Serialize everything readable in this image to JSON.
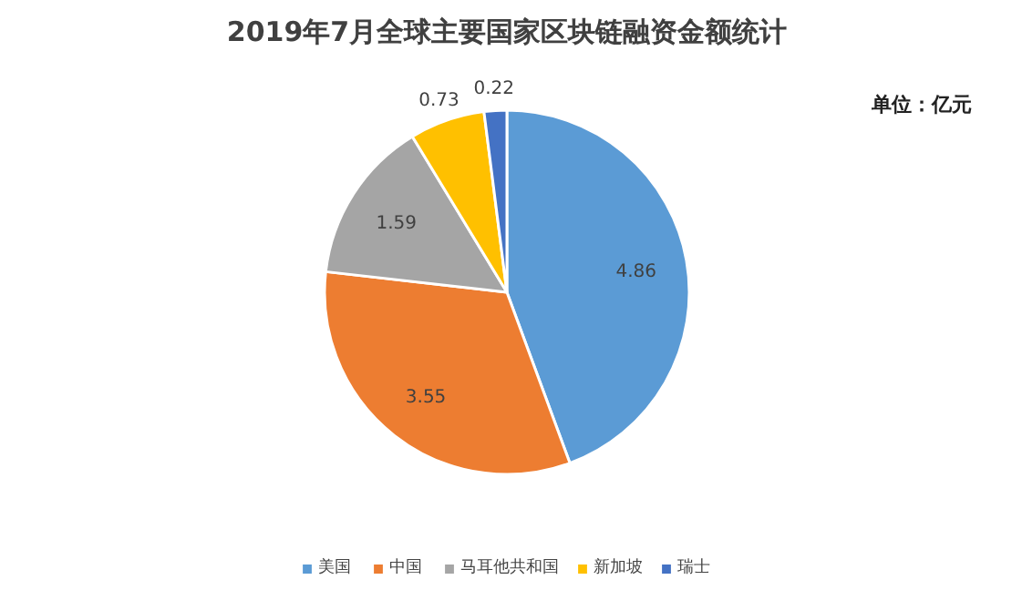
{
  "chart_data": {
    "type": "pie",
    "title": "2019年7月全球主要国家区块链融资金额统计",
    "annotations": [
      "单位：亿元"
    ],
    "categories": [
      "美国",
      "中国",
      "马耳他共和国",
      "新加坡",
      "瑞士"
    ],
    "values": [
      4.86,
      3.55,
      1.59,
      0.73,
      0.22
    ],
    "colors": [
      "#5b9bd5",
      "#ed7d31",
      "#a5a5a5",
      "#ffc000",
      "#4472c4"
    ],
    "data_labels": true,
    "legend": "bottom"
  }
}
